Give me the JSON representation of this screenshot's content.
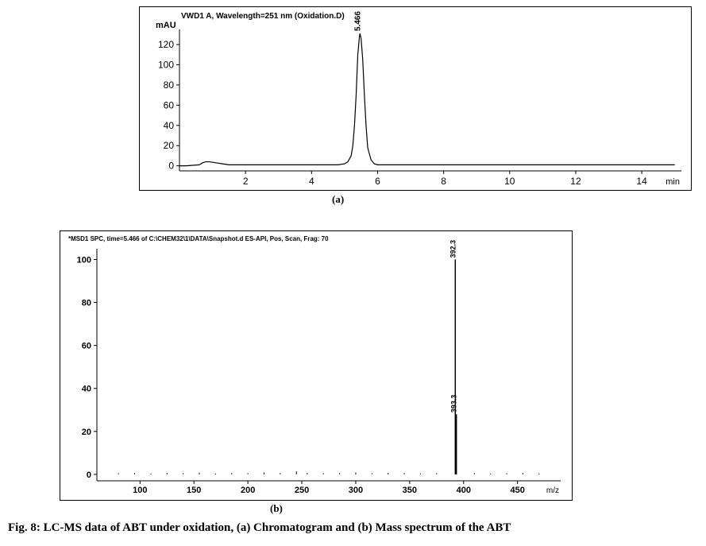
{
  "caption": "Fig. 8: LC-MS data of ABT under oxidation, (a) Chromatogram and (b) Mass spectrum of the ABT",
  "chromatogram": {
    "type": "line",
    "header": "VWD1 A, Wavelength=251 nm (Oxidation.D)",
    "ylabel": "mAU",
    "xlabel": "min",
    "ytick_labels": [
      "0",
      "20",
      "40",
      "60",
      "80",
      "100",
      "120"
    ],
    "ytick_values": [
      0,
      20,
      40,
      60,
      80,
      100,
      120
    ],
    "ylim": [
      -5,
      135
    ],
    "xtick_labels": [
      "2",
      "4",
      "6",
      "8",
      "10",
      "12",
      "14"
    ],
    "xtick_values": [
      2,
      4,
      6,
      8,
      10,
      12,
      14
    ],
    "xlim": [
      0,
      15.2
    ],
    "peak_label": "5.466",
    "line_color": "#000000",
    "line_width": 1.2,
    "data": [
      [
        0.0,
        0
      ],
      [
        0.2,
        0
      ],
      [
        0.6,
        1
      ],
      [
        0.7,
        3
      ],
      [
        0.8,
        4
      ],
      [
        0.9,
        4
      ],
      [
        1.0,
        3.5
      ],
      [
        1.1,
        3
      ],
      [
        1.3,
        2
      ],
      [
        1.5,
        1
      ],
      [
        2.0,
        1
      ],
      [
        3.0,
        1
      ],
      [
        4.0,
        1
      ],
      [
        4.5,
        1
      ],
      [
        4.8,
        1
      ],
      [
        5.0,
        2
      ],
      [
        5.1,
        4
      ],
      [
        5.2,
        10
      ],
      [
        5.25,
        20
      ],
      [
        5.3,
        40
      ],
      [
        5.35,
        70
      ],
      [
        5.4,
        110
      ],
      [
        5.45,
        128
      ],
      [
        5.466,
        131
      ],
      [
        5.5,
        126
      ],
      [
        5.55,
        105
      ],
      [
        5.6,
        70
      ],
      [
        5.65,
        40
      ],
      [
        5.7,
        18
      ],
      [
        5.8,
        6
      ],
      [
        5.9,
        2
      ],
      [
        6.0,
        1
      ],
      [
        6.5,
        1
      ],
      [
        7.0,
        1
      ],
      [
        8.0,
        1
      ],
      [
        9.0,
        1
      ],
      [
        10.0,
        1
      ],
      [
        11.0,
        1
      ],
      [
        12.0,
        1
      ],
      [
        13.0,
        1
      ],
      [
        14.0,
        1
      ],
      [
        15.0,
        1
      ]
    ]
  },
  "mass_spectrum": {
    "type": "histogram",
    "header": "*MSD1 SPC, time=5.466 of C:\\CHEM32\\1\\DATA\\Snapshot.d    ES-API, Pos, Scan, Frag: 70",
    "ylabel_implied": "",
    "xlabel": "m/z",
    "ytick_labels": [
      "0",
      "20",
      "40",
      "60",
      "80",
      "100"
    ],
    "ytick_values": [
      0,
      20,
      40,
      60,
      80,
      100
    ],
    "ylim": [
      -3,
      105
    ],
    "xtick_labels": [
      "100",
      "150",
      "200",
      "250",
      "300",
      "350",
      "400",
      "450"
    ],
    "xtick_values": [
      100,
      150,
      200,
      250,
      300,
      350,
      400,
      450
    ],
    "xlim": [
      60,
      490
    ],
    "line_color": "#000000",
    "peaks": [
      {
        "mz": 392.3,
        "abund": 100,
        "label": "392.3"
      },
      {
        "mz": 393.3,
        "abund": 28,
        "label": "393.3"
      }
    ],
    "noise": [
      [
        80,
        0.5
      ],
      [
        95,
        0.6
      ],
      [
        110,
        0.4
      ],
      [
        125,
        0.7
      ],
      [
        140,
        0.5
      ],
      [
        155,
        0.8
      ],
      [
        170,
        0.4
      ],
      [
        185,
        0.6
      ],
      [
        200,
        0.5
      ],
      [
        215,
        0.9
      ],
      [
        230,
        0.6
      ],
      [
        245,
        1.4
      ],
      [
        255,
        0.7
      ],
      [
        270,
        0.5
      ],
      [
        285,
        0.6
      ],
      [
        300,
        0.9
      ],
      [
        315,
        0.5
      ],
      [
        330,
        0.7
      ],
      [
        345,
        0.6
      ],
      [
        360,
        0.4
      ],
      [
        375,
        0.5
      ],
      [
        410,
        0.6
      ],
      [
        425,
        0.4
      ],
      [
        440,
        0.5
      ],
      [
        455,
        0.6
      ],
      [
        470,
        0.4
      ]
    ]
  },
  "sublabel_a": "(a)",
  "sublabel_b": "(b)",
  "colors": {
    "axis": "#000000",
    "text": "#000000",
    "background": "#ffffff"
  },
  "fonts": {
    "header_size": 10,
    "tick_size": 12,
    "peak_label_size": 10
  }
}
